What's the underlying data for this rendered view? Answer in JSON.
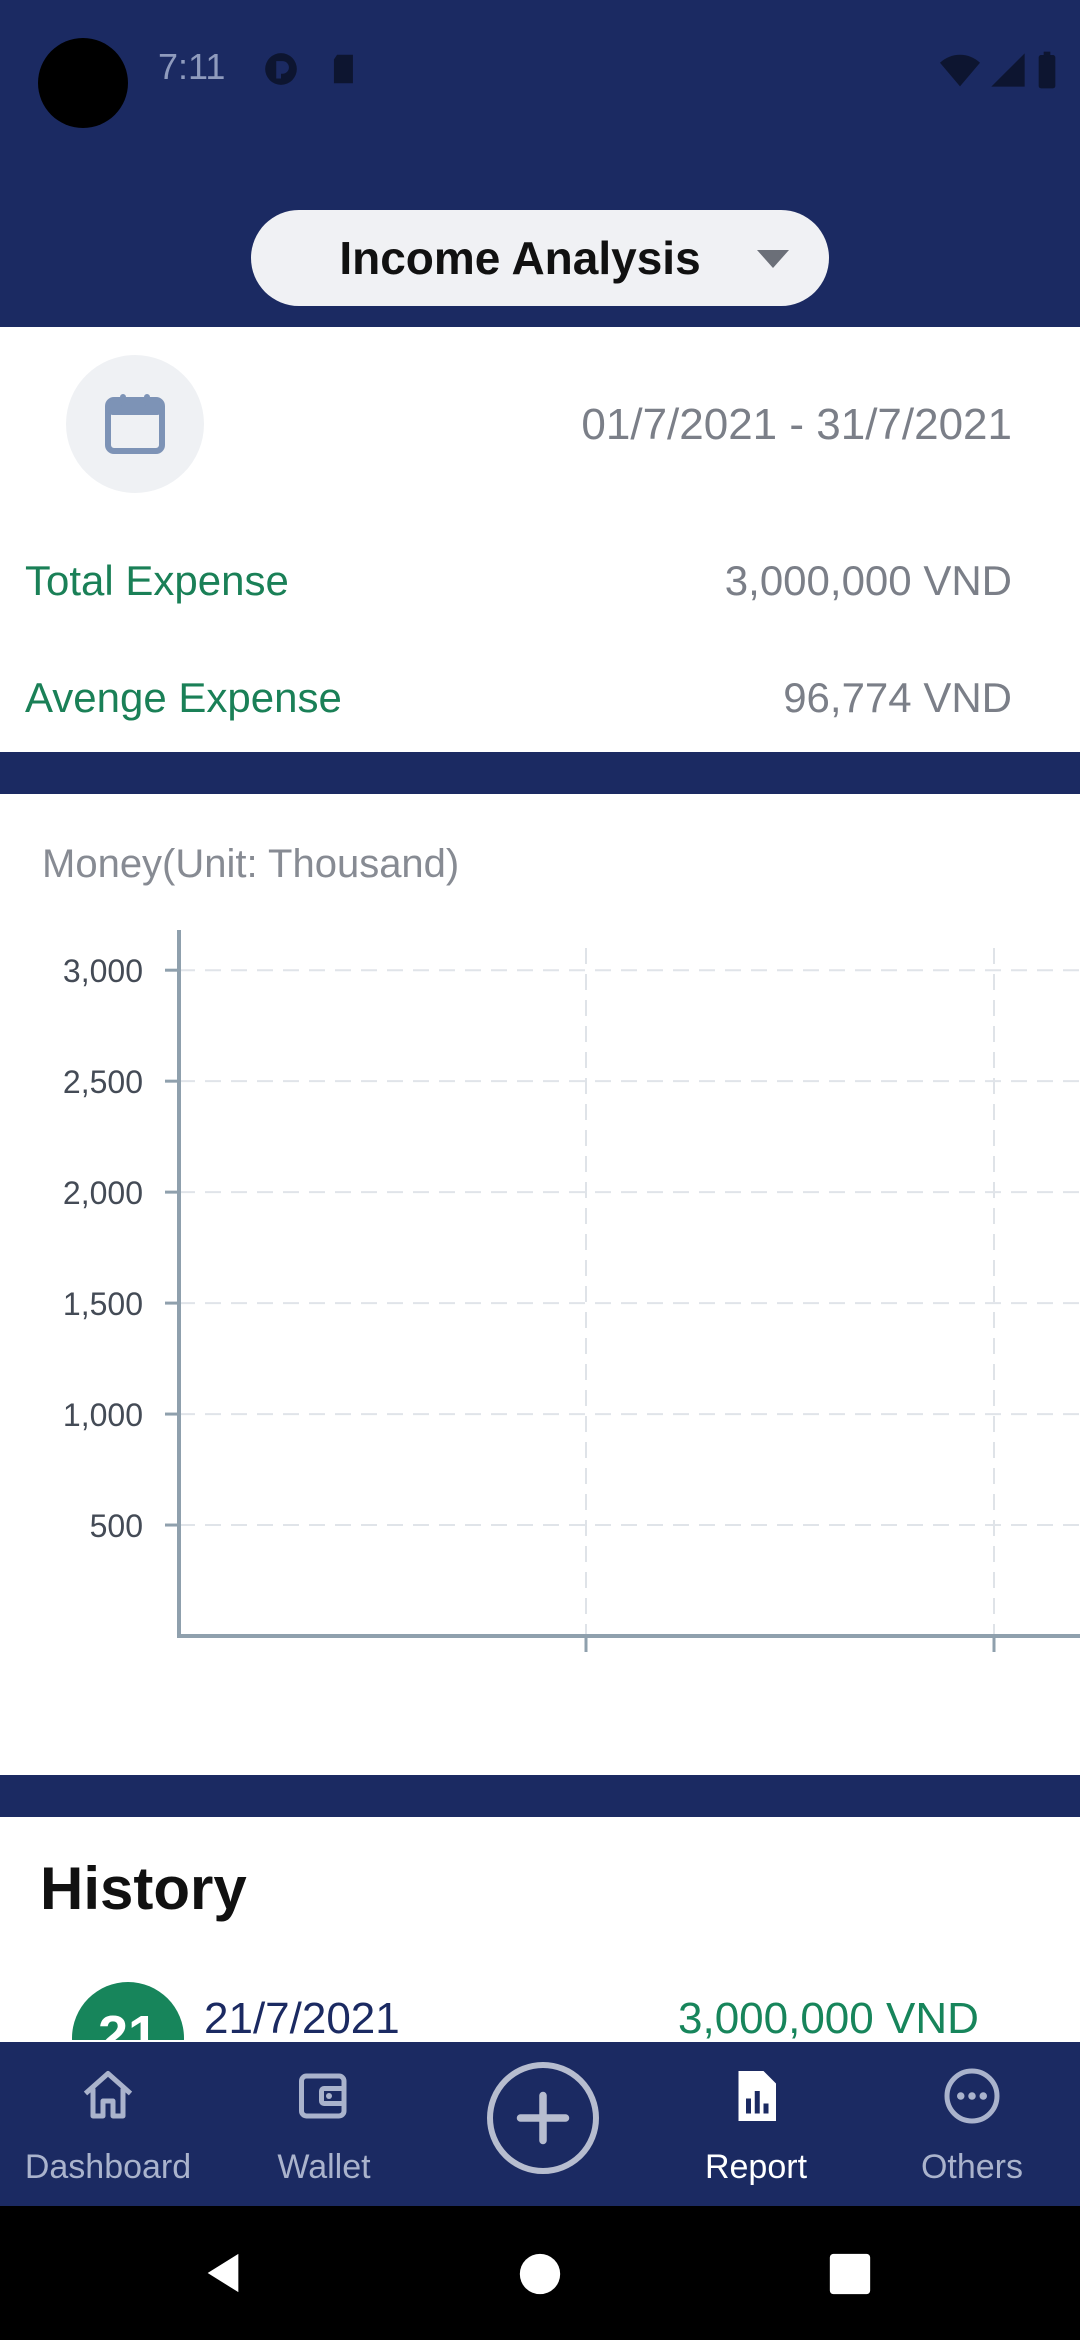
{
  "status_bar": {
    "time": "7:11"
  },
  "header": {
    "title": "Income Analysis"
  },
  "summary": {
    "date_range": "01/7/2021 - 31/7/2021",
    "total_label": "Total Expense",
    "total_value": "3,000,000 VND",
    "average_label": "Avenge Expense",
    "average_value": "96,774 VND"
  },
  "chart_data": {
    "type": "line",
    "title": "Money(Unit: Thousand)",
    "xlabel": "",
    "ylabel": "",
    "y_ticks": [
      "3,000",
      "2,500",
      "2,000",
      "1,500",
      "1,000",
      "500"
    ],
    "y_tick_values": [
      3000,
      2500,
      2000,
      1500,
      1000,
      500
    ],
    "ylim": [
      0,
      3100
    ],
    "grid": true,
    "series": []
  },
  "history": {
    "title": "History",
    "items": [
      {
        "day": "21",
        "date": "21/7/2021",
        "amount": "3,000,000 VND"
      }
    ]
  },
  "nav": {
    "items": [
      {
        "label": "Dashboard",
        "icon": "home-icon"
      },
      {
        "label": "Wallet",
        "icon": "wallet-icon"
      },
      {
        "label": "",
        "icon": "add-icon"
      },
      {
        "label": "Report",
        "icon": "report-icon"
      },
      {
        "label": "Others",
        "icon": "more-icon"
      }
    ],
    "active": "Report"
  },
  "colors": {
    "primary": "#1b2a62",
    "accent_green": "#1a8057",
    "muted_text": "#7b7f88"
  }
}
